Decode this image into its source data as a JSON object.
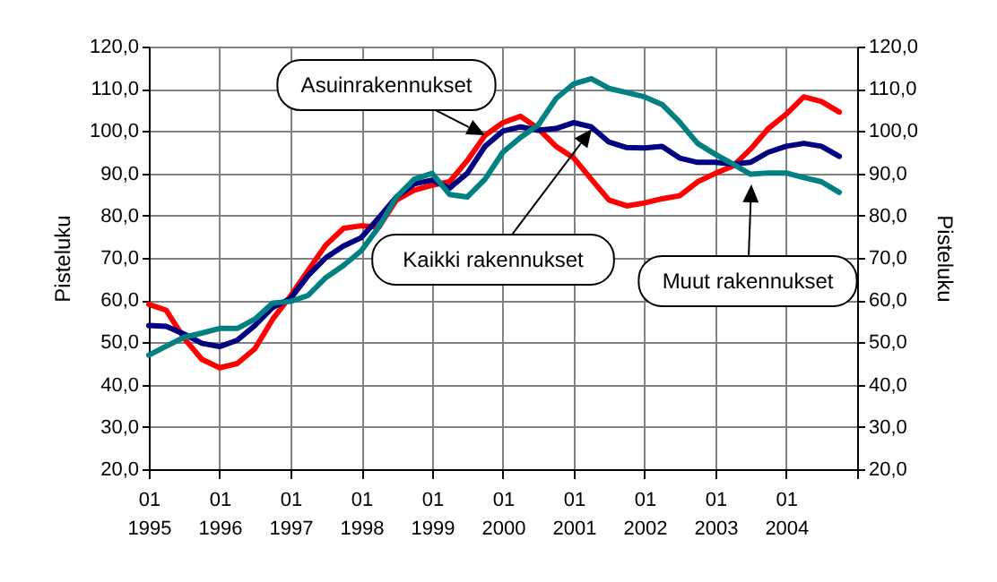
{
  "chart_data": {
    "type": "line",
    "ylabel": "Pisteluku",
    "y2label": "Pisteluku",
    "x": [
      "1995-01",
      "1995-04",
      "1995-07",
      "1995-10",
      "1996-01",
      "1996-04",
      "1996-07",
      "1996-10",
      "1997-01",
      "1997-04",
      "1997-07",
      "1997-10",
      "1998-01",
      "1998-04",
      "1998-07",
      "1998-10",
      "1999-01",
      "1999-04",
      "1999-07",
      "1999-10",
      "2000-01",
      "2000-04",
      "2000-07",
      "2000-10",
      "2001-01",
      "2001-04",
      "2001-07",
      "2001-10",
      "2002-01",
      "2002-04",
      "2002-07",
      "2002-10",
      "2003-01",
      "2003-04",
      "2003-07",
      "2003-10",
      "2004-01",
      "2004-04",
      "2004-07",
      "2004-10"
    ],
    "series": [
      {
        "color": "#ff0000",
        "values": [
          59,
          57.6,
          51,
          46,
          44,
          45,
          48.5,
          55.5,
          61,
          67,
          73,
          77,
          77.6,
          77.3,
          83.7,
          86,
          87.2,
          88,
          93,
          99,
          102,
          103.5,
          100.6,
          96.4,
          93.6,
          88.6,
          83.7,
          82.3,
          83,
          84,
          84.7,
          88,
          90,
          91.7,
          95.7,
          100.6,
          104,
          108.1,
          107,
          104.5
        ]
      },
      {
        "color": "#000080",
        "values": [
          54,
          53.8,
          52,
          49.8,
          49,
          50.5,
          54,
          58.3,
          60.4,
          65.8,
          70,
          72.8,
          74.8,
          79.5,
          84.4,
          87.5,
          88.4,
          86.5,
          90,
          96.4,
          100,
          101,
          100.2,
          100.6,
          102,
          101,
          97.4,
          96.1,
          96,
          96.4,
          93.6,
          92.6,
          92.6,
          92.2,
          92.6,
          95,
          96.4,
          97.1,
          96.4,
          94
        ]
      },
      {
        "color": "#008080",
        "values": [
          47,
          49.1,
          51.2,
          52.2,
          53.3,
          53.3,
          55.5,
          59.3,
          59.7,
          61.1,
          65.3,
          68.2,
          71.7,
          77.3,
          84.4,
          88.6,
          90,
          85,
          84.4,
          88.6,
          95,
          98.5,
          101.4,
          107.7,
          111.2,
          112.4,
          110.1,
          109.1,
          108.1,
          106.3,
          102.1,
          97.1,
          94.5,
          92.2,
          89.8,
          90.1,
          90.1,
          89,
          88,
          85.5
        ]
      }
    ],
    "xlim": [
      "1995-01",
      "2005-01"
    ],
    "xticks": [
      {
        "value": "1995-01",
        "label": "01\n1995"
      },
      {
        "value": "1996-01",
        "label": "01\n1996"
      },
      {
        "value": "1997-01",
        "label": "01\n1997"
      },
      {
        "value": "1998-01",
        "label": "01\n1998"
      },
      {
        "value": "1999-01",
        "label": "01\n1999"
      },
      {
        "value": "2000-01",
        "label": "01\n2000"
      },
      {
        "value": "2001-01",
        "label": "01\n2001"
      },
      {
        "value": "2002-01",
        "label": "01\n2002"
      },
      {
        "value": "2003-01",
        "label": "01\n2003"
      },
      {
        "value": "2004-01",
        "label": "01\n2004"
      },
      {
        "value": "2005-01",
        "label": null
      }
    ],
    "ylim": [
      20,
      120
    ],
    "yticks": [
      {
        "value": 20,
        "label": "20,0"
      },
      {
        "value": 30,
        "label": "30,0"
      },
      {
        "value": 40,
        "label": "40,0"
      },
      {
        "value": 50,
        "label": "50,0"
      },
      {
        "value": 60,
        "label": "60,0"
      },
      {
        "value": 70,
        "label": "70,0"
      },
      {
        "value": 80,
        "label": "80,0"
      },
      {
        "value": 90,
        "label": "90,0"
      },
      {
        "value": 100,
        "label": "100,0"
      },
      {
        "value": 110,
        "label": "110,0"
      },
      {
        "value": 120,
        "label": "120,0"
      }
    ],
    "y2lim": [
      20,
      120
    ],
    "y2ticks": [
      {
        "value": 20,
        "label": "20,0"
      },
      {
        "value": 30,
        "label": "30,0"
      },
      {
        "value": 40,
        "label": "40,0"
      },
      {
        "value": 50,
        "label": "50,0"
      },
      {
        "value": 60,
        "label": "60,0"
      },
      {
        "value": 70,
        "label": "70,0"
      },
      {
        "value": 80,
        "label": "80,0"
      },
      {
        "value": 90,
        "label": "90,0"
      },
      {
        "value": 100,
        "label": "100,0"
      },
      {
        "value": 110,
        "label": "110,0"
      },
      {
        "value": 120,
        "label": "120,0"
      }
    ],
    "annotations": [
      {
        "text": "Asuinrakennukset",
        "x": "1999-10",
        "y": 99
      },
      "Kaikki rakennukset",
      "Muut rakennukset"
    ],
    "grid": true,
    "legend": false,
    "line_style": "solid",
    "marker": "none"
  }
}
